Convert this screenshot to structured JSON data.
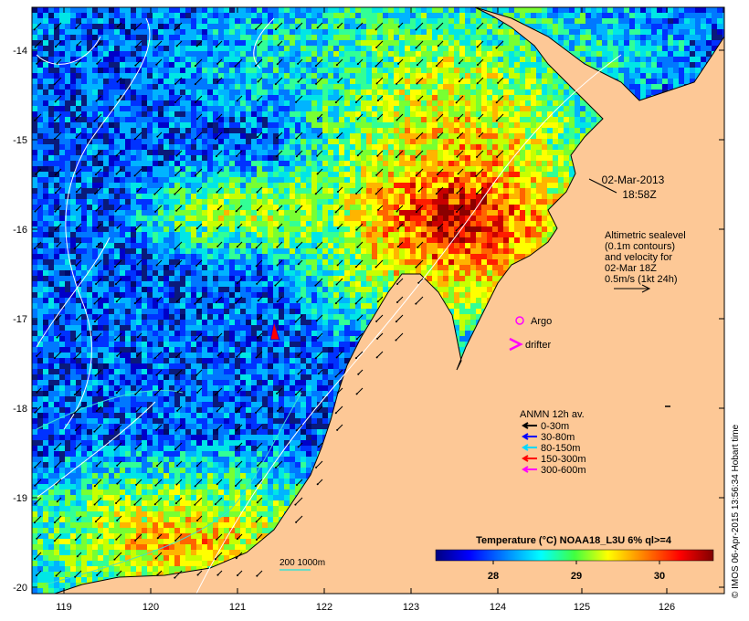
{
  "map": {
    "date": "02-Mar-2013",
    "time": "18:58Z",
    "altimetry_lines": [
      "Altimetric sealevel",
      "(0.1m contours)",
      "and velocity for",
      "02-Mar 18Z",
      "0.5m/s (1kt 24h)"
    ],
    "lat_ticks": [
      "-14",
      "-15",
      "-16",
      "-17",
      "-18",
      "-19",
      "-20"
    ],
    "lon_ticks": [
      "119",
      "120",
      "121",
      "122",
      "123",
      "124",
      "125",
      "126"
    ],
    "colors": {
      "land": "#fdc896",
      "ocean_deep": "#0a1a7a"
    }
  },
  "legend": {
    "argo_label": "Argo",
    "drifter_label": "drifter",
    "anmn_title": "ANMN 12h av.",
    "anmn_items": [
      {
        "label": "0-30m",
        "color": "#000000"
      },
      {
        "label": "30-80m",
        "color": "#0000ff"
      },
      {
        "label": "80-150m",
        "color": "#00d8ff"
      },
      {
        "label": "150-300m",
        "color": "#ff0000"
      },
      {
        "label": "300-600m",
        "color": "#ff00ff"
      }
    ],
    "bathy_label": "200  1000m"
  },
  "colorbar": {
    "title": "Temperature (°C) NOAA18_L3U 6% ql>=4",
    "ticks": [
      "28",
      "29",
      "30"
    ]
  },
  "credit": "© IMOS 06-Apr-2015 13:56:34 Hobart time"
}
